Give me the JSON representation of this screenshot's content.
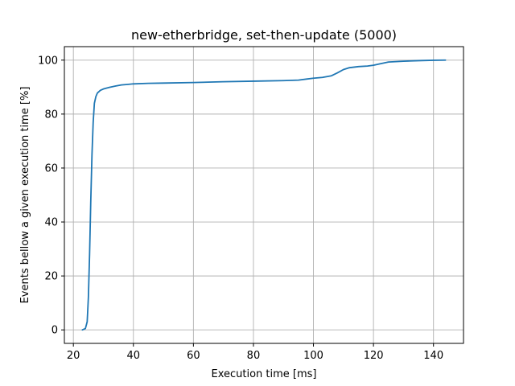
{
  "chart_data": {
    "type": "line",
    "title": "new-etherbridge, set-then-update (5000)",
    "xlabel": "Execution time [ms]",
    "ylabel": "Events bellow a given execution time [%]",
    "xlim": [
      17,
      150
    ],
    "ylim": [
      -5,
      105
    ],
    "xticks": [
      20,
      40,
      60,
      80,
      100,
      120,
      140
    ],
    "yticks": [
      0,
      20,
      40,
      60,
      80,
      100
    ],
    "xtick_labels": [
      "20",
      "40",
      "60",
      "80",
      "100",
      "120",
      "140"
    ],
    "ytick_labels": [
      "0",
      "20",
      "40",
      "60",
      "80",
      "100"
    ],
    "grid": true,
    "series": [
      {
        "name": "set-then-update",
        "color": "#1f77b4",
        "x": [
          23.0,
          24.0,
          24.6,
          25.0,
          25.4,
          25.8,
          26.2,
          26.6,
          27.0,
          27.5,
          28.0,
          29.0,
          30.0,
          32.0,
          34.0,
          36.0,
          38.0,
          40.0,
          45.0,
          50.0,
          60.0,
          70.0,
          80.0,
          90.0,
          95.0,
          100.0,
          103.0,
          106.0,
          108.0,
          110.0,
          112.0,
          115.0,
          118.0,
          120.0,
          122.0,
          125.0,
          130.0,
          135.0,
          140.0,
          144.0
        ],
        "y": [
          0.0,
          0.5,
          3.0,
          12.0,
          28.0,
          48.0,
          65.0,
          77.0,
          84.0,
          86.5,
          87.8,
          88.8,
          89.3,
          89.9,
          90.4,
          90.8,
          91.0,
          91.2,
          91.4,
          91.5,
          91.7,
          92.0,
          92.2,
          92.4,
          92.6,
          93.3,
          93.6,
          94.2,
          95.3,
          96.5,
          97.2,
          97.6,
          97.8,
          98.1,
          98.6,
          99.3,
          99.6,
          99.8,
          99.95,
          100.0
        ]
      }
    ]
  }
}
